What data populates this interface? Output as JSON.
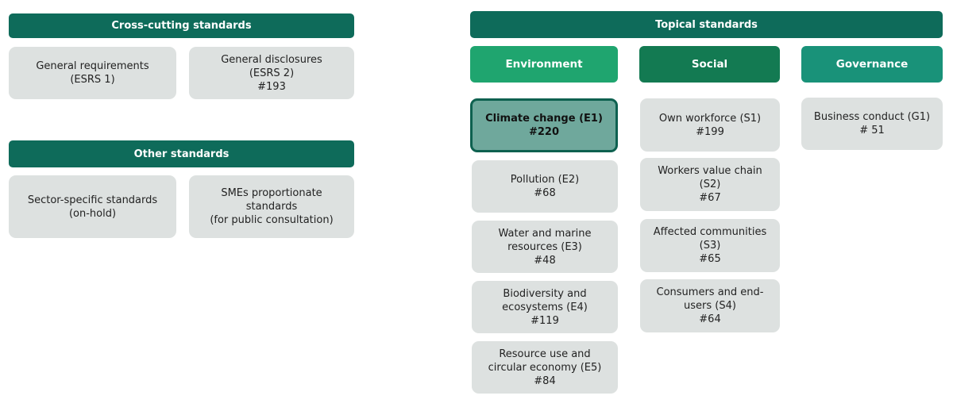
{
  "colors": {
    "header": "#0e6b5a",
    "environment": "#1fa56f",
    "social": "#137a52",
    "governance": "#199279",
    "box": "#dde1e0",
    "highlight": "#6fa89c"
  },
  "cross_cutting": {
    "title": "Cross-cutting standards",
    "boxes": [
      {
        "lines": [
          "General requirements",
          "(ESRS 1)"
        ]
      },
      {
        "lines": [
          "General disclosures",
          "(ESRS 2)",
          "#193"
        ]
      }
    ]
  },
  "other": {
    "title": "Other standards",
    "boxes": [
      {
        "lines": [
          "Sector-specific standards",
          "(on-hold)"
        ]
      },
      {
        "lines": [
          "SMEs proportionate",
          "standards",
          "(for public consultation)"
        ]
      }
    ]
  },
  "topical": {
    "title": "Topical standards",
    "environment": {
      "label": "Environment",
      "boxes": [
        {
          "lines": [
            "Climate change (E1)",
            "#220"
          ],
          "highlighted": true
        },
        {
          "lines": [
            "Pollution (E2)",
            "#68"
          ]
        },
        {
          "lines": [
            "Water and marine",
            "resources (E3)",
            "#48"
          ]
        },
        {
          "lines": [
            "Biodiversity and",
            "ecosystems (E4)",
            "#119"
          ]
        },
        {
          "lines": [
            "Resource use and",
            "circular economy (E5)",
            "#84"
          ]
        }
      ]
    },
    "social": {
      "label": "Social",
      "boxes": [
        {
          "lines": [
            "Own workforce  (S1)",
            "#199"
          ]
        },
        {
          "lines": [
            "Workers value chain",
            "(S2)",
            "#67"
          ]
        },
        {
          "lines": [
            "Affected communities",
            "(S3)",
            "#65"
          ]
        },
        {
          "lines": [
            "Consumers and end-",
            "users (S4)",
            "#64"
          ]
        }
      ]
    },
    "governance": {
      "label": "Governance",
      "boxes": [
        {
          "lines": [
            "Business conduct (G1)",
            "# 51"
          ]
        }
      ]
    }
  }
}
